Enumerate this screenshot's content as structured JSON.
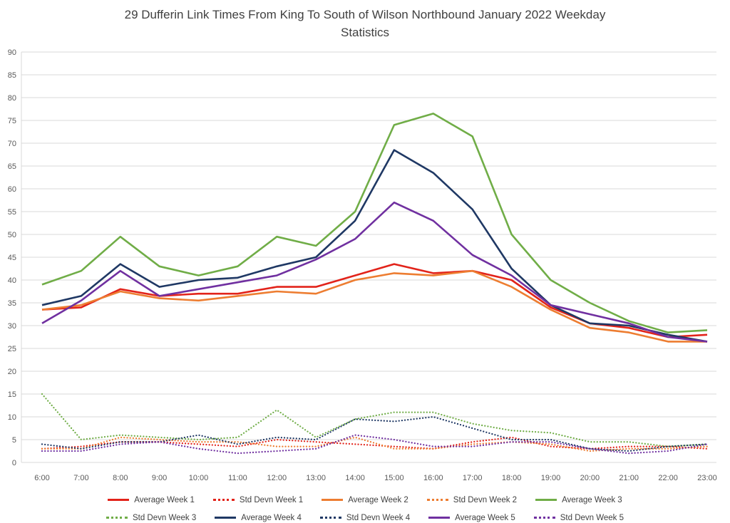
{
  "header": {
    "title_line1": "29 Dufferin Link Times From King To South of Wilson Northbound January 2022 Weekday",
    "title_line2": "Statistics"
  },
  "chart_data": {
    "type": "line",
    "title": "29 Dufferin Link Times From King To South of Wilson Northbound January 2022 Weekday Statistics",
    "xlabel": "",
    "ylabel": "",
    "ylim": [
      0,
      90
    ],
    "ytick_step": 5,
    "grid": true,
    "grid_color": "#D9D9D9",
    "axis_label_color": "#595959",
    "legend_position": "bottom",
    "x": [
      "6:00",
      "7:00",
      "8:00",
      "9:00",
      "10:00",
      "11:00",
      "12:00",
      "13:00",
      "14:00",
      "15:00",
      "16:00",
      "17:00",
      "18:00",
      "19:00",
      "20:00",
      "21:00",
      "22:00",
      "23:00"
    ],
    "series": [
      {
        "name": "Average Week 1",
        "style": "solid",
        "color": "#E2231A",
        "values": [
          33.5,
          34,
          38,
          36.5,
          37,
          37,
          38.5,
          38.5,
          41,
          43.5,
          41.5,
          42,
          40,
          34,
          30.5,
          29.5,
          27.5,
          28
        ]
      },
      {
        "name": "Std Devn Week 1",
        "style": "dotted",
        "color": "#E2231A",
        "values": [
          3,
          3.5,
          4.5,
          4.5,
          4,
          3.5,
          5,
          4.5,
          4,
          3.5,
          3,
          4.5,
          5.5,
          3.5,
          3,
          3.5,
          3.5,
          3
        ]
      },
      {
        "name": "Average Week 2",
        "style": "solid",
        "color": "#ED7D31",
        "values": [
          33.5,
          34.5,
          37.5,
          36,
          35.5,
          36.5,
          37.5,
          37,
          40,
          41.5,
          41,
          42,
          38.5,
          33.5,
          29.5,
          28.5,
          26.5,
          26.5
        ]
      },
      {
        "name": "Std Devn Week 2",
        "style": "dotted",
        "color": "#ED7D31",
        "values": [
          3,
          3,
          5.5,
          5,
          4.5,
          4.5,
          3.5,
          3.5,
          5.5,
          3,
          3,
          4,
          4.5,
          4,
          2.5,
          3,
          3,
          3.5
        ]
      },
      {
        "name": "Average Week 3",
        "style": "solid",
        "color": "#70AD47",
        "values": [
          39,
          42,
          49.5,
          43,
          41,
          43,
          49.5,
          47.5,
          55,
          74,
          76.5,
          71.5,
          50,
          40,
          35,
          31,
          28.5,
          29
        ]
      },
      {
        "name": "Std Devn Week 3",
        "style": "dotted",
        "color": "#70AD47",
        "values": [
          15,
          5,
          6,
          5.5,
          5,
          5.5,
          11.5,
          5.5,
          9.5,
          11,
          11,
          8.5,
          7,
          6.5,
          4.5,
          4.5,
          3.5,
          4
        ]
      },
      {
        "name": "Average Week 4",
        "style": "solid",
        "color": "#1F3864",
        "values": [
          34.5,
          36.5,
          43.5,
          38.5,
          40,
          40.5,
          43,
          45,
          53,
          68.5,
          63.5,
          55.5,
          42.5,
          34.5,
          30.5,
          30,
          28,
          26.5
        ]
      },
      {
        "name": "Std Devn Week 4",
        "style": "dotted",
        "color": "#1F3864",
        "values": [
          4,
          3,
          4.5,
          4.5,
          6,
          4,
          5.5,
          5,
          9.5,
          9,
          10,
          7.5,
          5,
          5,
          3,
          2.5,
          3.5,
          4
        ]
      },
      {
        "name": "Average Week 5",
        "style": "solid",
        "color": "#7030A0",
        "values": [
          30.5,
          35.5,
          42,
          36.5,
          38,
          39.5,
          41,
          44.5,
          49,
          57,
          53,
          45.5,
          41,
          34.5,
          32.5,
          30.5,
          27.5,
          26.5
        ]
      },
      {
        "name": "Std Devn Week 5",
        "style": "dotted",
        "color": "#7030A0",
        "values": [
          2.5,
          2.5,
          4,
          4.5,
          3,
          2,
          2.5,
          3,
          6,
          5,
          3.5,
          3.5,
          4.5,
          4.5,
          3,
          2,
          2.5,
          4
        ]
      }
    ]
  }
}
